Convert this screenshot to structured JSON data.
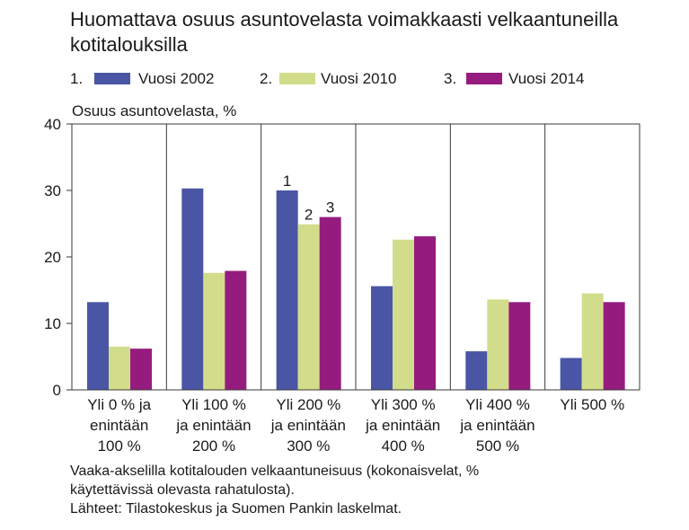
{
  "title": "Huomattava osuus asuntovelasta voimakkaasti velkaantuneilla kotitalouksilla",
  "legend": [
    {
      "number": "1.",
      "label": "Vuosi 2002",
      "color": "#4a55a6"
    },
    {
      "number": "2.",
      "label": "Vuosi 2010",
      "color": "#d1dd8a"
    },
    {
      "number": "3.",
      "label": "Vuosi 2014",
      "color": "#951c7e"
    }
  ],
  "chart_data": {
    "type": "bar",
    "title": "Huomattava osuus asuntovelasta voimakkaasti velkaantuneilla kotitalouksilla",
    "ylabel": "Osuus asuntovelasta, %",
    "ylim": [
      0,
      40
    ],
    "yticks": [
      0,
      10,
      20,
      30,
      40
    ],
    "categories": [
      [
        "Yli 0 % ja",
        "enintään",
        "100 %"
      ],
      [
        "Yli 100 %",
        "ja enintään",
        "200 %"
      ],
      [
        "Yli 200 %",
        "ja enintään",
        "300 %"
      ],
      [
        "Yli 300 %",
        "ja enintään",
        "400 %"
      ],
      [
        "Yli 400 %",
        "ja enintään",
        "500 %"
      ],
      [
        "Yli 500 %"
      ]
    ],
    "series": [
      {
        "name": "Vuosi 2002",
        "color": "#4a55a6",
        "values": [
          13.2,
          30.3,
          30.0,
          15.6,
          5.8,
          4.8
        ]
      },
      {
        "name": "Vuosi 2010",
        "color": "#d1dd8a",
        "values": [
          6.5,
          17.6,
          24.9,
          22.6,
          13.6,
          14.5
        ]
      },
      {
        "name": "Vuosi 2014",
        "color": "#951c7e",
        "values": [
          6.2,
          17.9,
          26.0,
          23.1,
          13.2,
          13.2
        ]
      }
    ],
    "annotations": [
      {
        "text": "1",
        "category_index": 2,
        "series_index": 0
      },
      {
        "text": "2",
        "category_index": 2,
        "series_index": 1
      },
      {
        "text": "3",
        "category_index": 2,
        "series_index": 2
      }
    ],
    "grid": "vertical category separators",
    "legend_position": "top"
  },
  "footer": {
    "line1": "Vaaka-akselilla kotitalouden velkaantuneisuus (kokonaisvelat, %",
    "line2": "käytettävissä olevasta rahatulosta).",
    "line3": "Lähteet: Tilastokeskus ja Suomen Pankin laskelmat."
  }
}
